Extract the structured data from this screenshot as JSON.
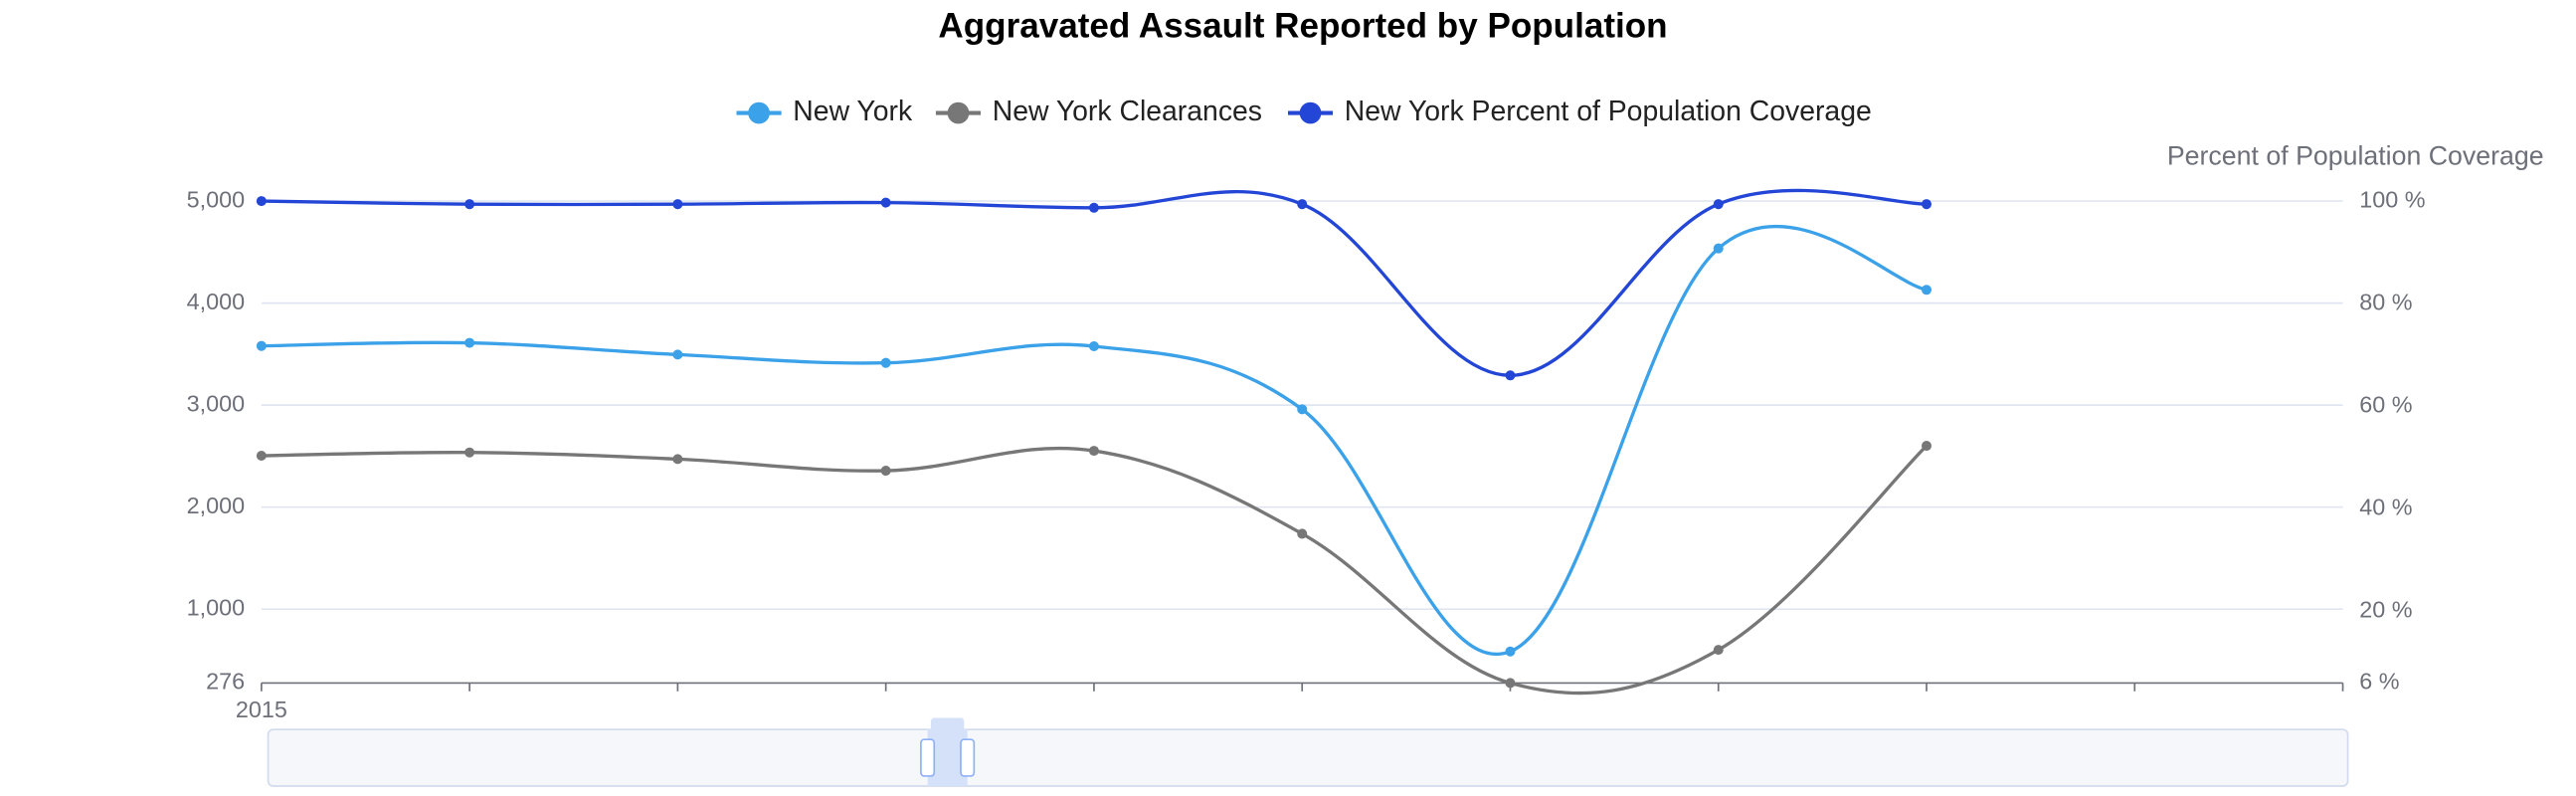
{
  "chart_data": {
    "type": "line",
    "title": "Aggravated Assault Reported by Population",
    "y2_label": "Percent of Population Coverage",
    "categories": [
      "2015",
      null,
      null,
      null,
      null,
      null,
      null,
      null,
      null,
      null,
      null
    ],
    "series": [
      {
        "name": "New York",
        "color": "#3ba1e8",
        "values": [
          3580,
          3610,
          3495,
          3414,
          3577,
          2959,
          585,
          4536,
          4130,
          null,
          null
        ]
      },
      {
        "name": "New York Clearances",
        "color": "#777777",
        "values": [
          2504,
          2536,
          2471,
          2357,
          2552,
          1739,
          276,
          601,
          2601,
          null,
          null
        ]
      },
      {
        "name": "New York Percent of Population Coverage",
        "color": "#2346d6",
        "axis": "y2",
        "values": [
          100,
          99.4,
          99.4,
          99.7,
          98.7,
          99.4,
          66,
          99.4,
          99.4,
          null,
          null
        ]
      }
    ],
    "ylim": [
      276,
      5000
    ],
    "yticks": [
      276,
      {
        "value": 1000,
        "label": "1,000"
      },
      {
        "value": 2000,
        "label": "2,000"
      },
      {
        "value": 3000,
        "label": "3,000"
      },
      {
        "value": 4000,
        "label": "4,000"
      },
      {
        "value": 5000,
        "label": "5,000"
      }
    ],
    "y2lim": [
      6,
      100
    ],
    "y2ticks": [
      {
        "value": 6,
        "label": "6 %"
      },
      {
        "value": 20,
        "label": "20 %"
      },
      {
        "value": 40,
        "label": "40 %"
      },
      {
        "value": 60,
        "label": "60 %"
      },
      {
        "value": 80,
        "label": "80 %"
      },
      {
        "value": 100,
        "label": "100 %"
      }
    ],
    "grid": true,
    "legend": "top"
  }
}
